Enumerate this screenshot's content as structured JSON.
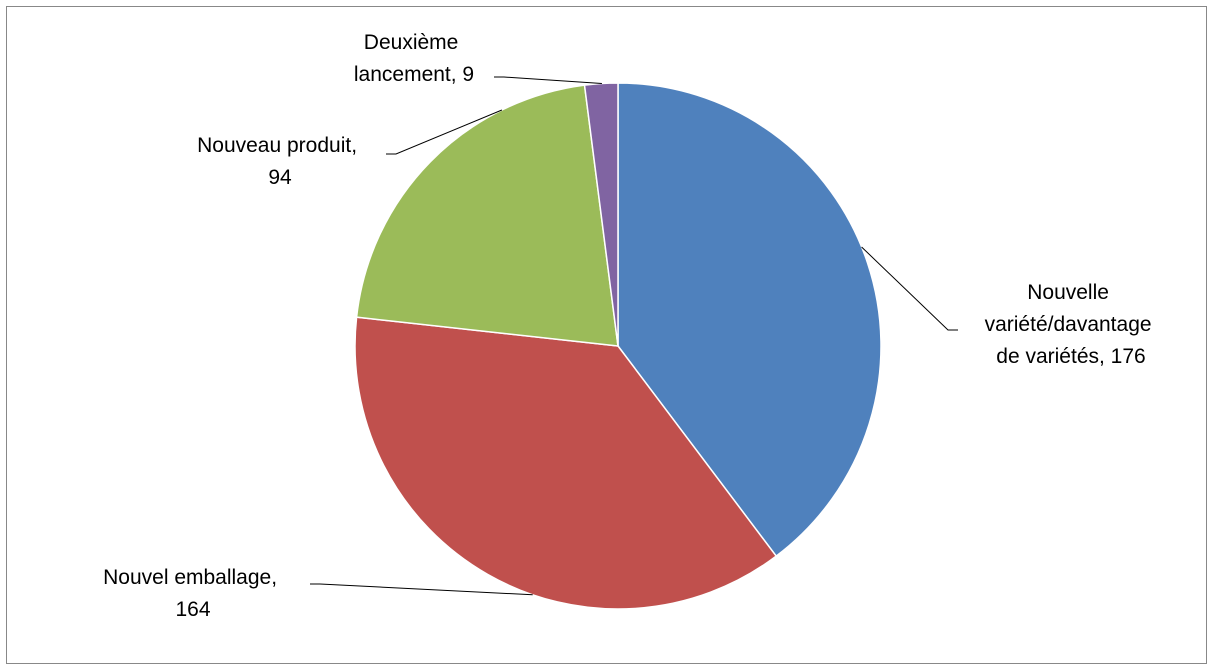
{
  "chart_data": {
    "type": "pie",
    "title": "",
    "legend": "none",
    "slices": [
      {
        "name": "Nouvelle variété/davantage de variétés",
        "value": 176,
        "color": "#4F81BD",
        "label_lines": [
          "Nouvelle",
          "variété/davantage",
          "de variétés, 176"
        ]
      },
      {
        "name": "Nouvel emballage",
        "value": 164,
        "color": "#C0504D",
        "label_lines": [
          "Nouvel emballage,",
          "164"
        ]
      },
      {
        "name": "Nouveau produit",
        "value": 94,
        "color": "#9BBB59",
        "label_lines": [
          "Nouveau produit,",
          "94"
        ]
      },
      {
        "name": "Deuxième lancement",
        "value": 9,
        "color": "#8064A2",
        "label_lines": [
          "Deuxième",
          "lancement, 9"
        ]
      }
    ]
  }
}
